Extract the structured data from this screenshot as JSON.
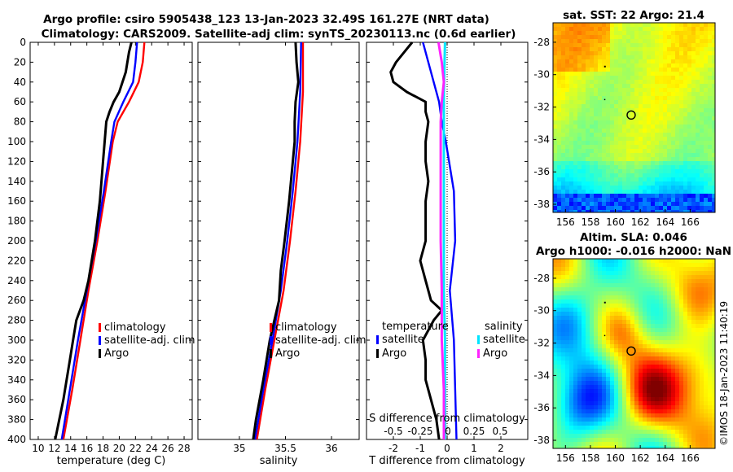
{
  "titles": {
    "line1": "Argo profile: csiro 5905438_123 13-Jan-2023 32.49S 161.27E (NRT data)",
    "line2": "Climatology: CARS2009. Satellite-adj clim: synTS_20230113.nc (0.6d earlier)",
    "sst_map": "sat. SST: 22 Argo: 21.4",
    "sla_line1": "Altim. SLA: 0.046",
    "sla_line2": "Argo h1000: -0.016 h2000: NaN"
  },
  "watermark": "©IMOS 18-Jan-2023 11:40:19",
  "colors": {
    "climatology": "#ff0000",
    "satellite": "#0000ff",
    "argo": "#000000",
    "sal_satellite": "#00e5ff",
    "sal_argo": "#ff22ff"
  },
  "chart_data": [
    {
      "type": "line",
      "name": "temperature-profile",
      "title": "",
      "xlabel": "temperature (deg C)",
      "ylabel": "",
      "xlim": [
        9,
        29
      ],
      "ylim": [
        400,
        0
      ],
      "xticks": [
        "10",
        "12",
        "14",
        "16",
        "18",
        "20",
        "22",
        "24",
        "26",
        "28"
      ],
      "yticks": [
        "0",
        "20",
        "40",
        "60",
        "80",
        "100",
        "120",
        "140",
        "160",
        "180",
        "200",
        "220",
        "240",
        "260",
        "280",
        "300",
        "320",
        "340",
        "360",
        "380",
        "400"
      ],
      "legend": [
        "climatology",
        "satellite-adj. clim",
        "Argo"
      ],
      "series": [
        {
          "name": "climatology",
          "depth": [
            0,
            20,
            40,
            60,
            80,
            100,
            150,
            200,
            250,
            300,
            350,
            400
          ],
          "values": [
            23.1,
            22.9,
            22.4,
            21.2,
            19.8,
            19.2,
            18.3,
            17.3,
            16.2,
            15.2,
            14.2,
            13.1
          ]
        },
        {
          "name": "satellite-adj. clim",
          "depth": [
            0,
            20,
            40,
            60,
            80,
            100,
            150,
            200,
            250,
            300,
            350,
            400
          ],
          "values": [
            22.2,
            22.0,
            21.7,
            20.5,
            19.4,
            19.0,
            18.1,
            17.1,
            16.0,
            14.9,
            13.9,
            12.9
          ]
        },
        {
          "name": "Argo",
          "depth": [
            0,
            10,
            20,
            30,
            40,
            50,
            60,
            70,
            80,
            100,
            120,
            140,
            160,
            180,
            200,
            220,
            240,
            260,
            280,
            300,
            320,
            340,
            360,
            380,
            400
          ],
          "values": [
            21.5,
            21.2,
            21.0,
            20.8,
            20.4,
            20.0,
            19.3,
            18.8,
            18.4,
            18.2,
            18.0,
            17.8,
            17.6,
            17.3,
            17.0,
            16.6,
            16.2,
            15.6,
            14.7,
            14.3,
            13.9,
            13.5,
            13.1,
            12.6,
            12.1
          ]
        }
      ]
    },
    {
      "type": "line",
      "name": "salinity-profile",
      "title": "",
      "xlabel": "salinity",
      "ylabel": "",
      "xlim": [
        34.55,
        36.3
      ],
      "ylim": [
        400,
        0
      ],
      "xticks": [
        "35",
        "35.5",
        "36"
      ],
      "legend": [
        "climatology",
        "satellite-adj. clim",
        "Argo"
      ],
      "series": [
        {
          "name": "climatology",
          "depth": [
            0,
            50,
            100,
            150,
            200,
            250,
            300,
            350,
            400
          ],
          "values": [
            35.69,
            35.69,
            35.66,
            35.61,
            35.55,
            35.48,
            35.38,
            35.28,
            35.19
          ]
        },
        {
          "name": "satellite-adj. clim",
          "depth": [
            0,
            50,
            100,
            150,
            200,
            250,
            300,
            350,
            400
          ],
          "values": [
            35.67,
            35.66,
            35.63,
            35.58,
            35.52,
            35.45,
            35.36,
            35.26,
            35.17
          ]
        },
        {
          "name": "Argo",
          "depth": [
            0,
            20,
            40,
            60,
            80,
            100,
            130,
            160,
            200,
            230,
            260,
            280,
            300,
            340,
            380,
            400
          ],
          "values": [
            35.61,
            35.62,
            35.64,
            35.61,
            35.6,
            35.6,
            35.57,
            35.54,
            35.49,
            35.45,
            35.43,
            35.38,
            35.33,
            35.26,
            35.18,
            35.15
          ]
        }
      ]
    },
    {
      "type": "line",
      "name": "difference-profile",
      "title": "",
      "xlabel": "T difference from climatology",
      "xlabel_top": "S difference from climatology",
      "ylabel": "",
      "xlim": [
        -3,
        3
      ],
      "ylim": [
        400,
        0
      ],
      "xticks": [
        "-2",
        "-1",
        "0",
        "1",
        "2"
      ],
      "xticks_top": [
        "-0.5",
        "-0.25",
        "0",
        "0.25",
        "0.5"
      ],
      "legend_temperature": {
        "header": "temperature",
        "items": [
          "satellite",
          "Argo"
        ]
      },
      "legend_salinity": {
        "header": "salinity",
        "items": [
          "satellite",
          "Argo"
        ]
      },
      "series": [
        {
          "name": "T satellite",
          "depth": [
            0,
            20,
            40,
            60,
            80,
            100,
            150,
            200,
            250,
            300,
            350,
            400
          ],
          "values": [
            -0.9,
            -0.7,
            -0.5,
            -0.3,
            -0.2,
            -0.05,
            0.25,
            0.3,
            0.1,
            0.25,
            0.3,
            0.35
          ]
        },
        {
          "name": "T Argo",
          "depth": [
            0,
            10,
            20,
            30,
            40,
            50,
            60,
            70,
            80,
            100,
            120,
            140,
            160,
            180,
            200,
            220,
            240,
            260,
            270,
            280,
            300,
            320,
            340,
            360,
            380,
            400
          ],
          "values": [
            -1.3,
            -1.6,
            -1.9,
            -2.1,
            -2.0,
            -1.5,
            -0.8,
            -0.8,
            -0.7,
            -0.8,
            -0.8,
            -0.7,
            -0.8,
            -0.8,
            -0.8,
            -1.0,
            -0.8,
            -0.6,
            -0.2,
            -0.5,
            -0.9,
            -0.8,
            -0.8,
            -0.6,
            -0.4,
            -0.3
          ]
        },
        {
          "name": "S satellite",
          "depth": [
            0,
            50,
            100,
            150,
            200,
            250,
            300,
            350,
            400
          ],
          "values": [
            -0.02,
            -0.03,
            -0.03,
            -0.03,
            -0.03,
            -0.03,
            -0.02,
            -0.02,
            -0.02
          ]
        },
        {
          "name": "S Argo",
          "depth": [
            0,
            20,
            40,
            60,
            80,
            100,
            150,
            200,
            250,
            300,
            350,
            400
          ],
          "values": [
            -0.08,
            -0.05,
            -0.03,
            -0.05,
            -0.06,
            -0.06,
            -0.06,
            -0.06,
            -0.05,
            -0.05,
            -0.03,
            -0.03
          ]
        }
      ]
    },
    {
      "type": "heatmap",
      "name": "sst-map",
      "title": "sat. SST: 22 Argo: 21.4",
      "xlim": [
        155,
        168
      ],
      "ylim": [
        -38.5,
        -26.8
      ],
      "xticks": [
        "156",
        "158",
        "160",
        "162",
        "164",
        "166"
      ],
      "yticks": [
        "-28",
        "-30",
        "-32",
        "-34",
        "-36",
        "-38"
      ],
      "argo_position": {
        "lon": 161.27,
        "lat": -32.49
      }
    },
    {
      "type": "heatmap",
      "name": "sla-map",
      "title": "Altim. SLA: 0.046",
      "xlim": [
        155,
        168
      ],
      "ylim": [
        -38.5,
        -26.8
      ],
      "xticks": [
        "156",
        "158",
        "160",
        "162",
        "164",
        "166"
      ],
      "yticks": [
        "-28",
        "-30",
        "-32",
        "-34",
        "-36",
        "-38"
      ],
      "argo_position": {
        "lon": 161.27,
        "lat": -32.49
      }
    }
  ]
}
